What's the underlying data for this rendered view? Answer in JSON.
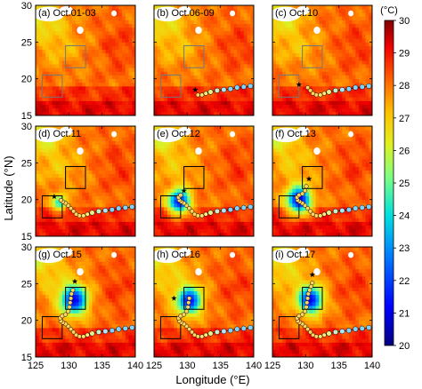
{
  "chart_data": {
    "type": "heatmap",
    "xlabel": "Longitude (°E)",
    "ylabel": "Latitude (°N)",
    "x_ticks": [
      "125",
      "130",
      "135",
      "140"
    ],
    "y_ticks": [
      "15",
      "20",
      "25",
      "30"
    ],
    "xlim": [
      125,
      140
    ],
    "ylim": [
      15,
      30
    ],
    "colorbar": {
      "unit": "(°C)",
      "min": 20,
      "max": 30,
      "ticks": [
        "30",
        "29",
        "28",
        "27",
        "26",
        "25",
        "24",
        "23",
        "22",
        "21",
        "20"
      ]
    },
    "boxes": [
      {
        "lon": [
          126,
          129
        ],
        "lat": [
          17.5,
          20.5
        ]
      },
      {
        "lon": [
          129.5,
          132.5
        ],
        "lat": [
          21.5,
          24.5
        ]
      }
    ],
    "track": [
      {
        "lon": 139.5,
        "lat": 19.0
      },
      {
        "lon": 138.5,
        "lat": 18.9
      },
      {
        "lon": 137.5,
        "lat": 18.8
      },
      {
        "lon": 136.5,
        "lat": 18.6
      },
      {
        "lon": 135.5,
        "lat": 18.5
      },
      {
        "lon": 134.5,
        "lat": 18.4
      },
      {
        "lon": 133.5,
        "lat": 18.2
      },
      {
        "lon": 132.8,
        "lat": 18.0
      },
      {
        "lon": 132.2,
        "lat": 17.8
      },
      {
        "lon": 131.6,
        "lat": 17.8
      },
      {
        "lon": 131.1,
        "lat": 18.0
      },
      {
        "lon": 130.7,
        "lat": 18.4
      },
      {
        "lon": 130.3,
        "lat": 18.8
      },
      {
        "lon": 129.9,
        "lat": 19.2
      },
      {
        "lon": 129.5,
        "lat": 19.5
      },
      {
        "lon": 129.1,
        "lat": 19.7
      },
      {
        "lon": 128.8,
        "lat": 19.9
      },
      {
        "lon": 128.7,
        "lat": 20.3
      },
      {
        "lon": 129.0,
        "lat": 20.6
      },
      {
        "lon": 129.5,
        "lat": 20.8
      },
      {
        "lon": 129.9,
        "lat": 21.2
      },
      {
        "lon": 130.1,
        "lat": 21.8
      },
      {
        "lon": 130.2,
        "lat": 22.4
      },
      {
        "lon": 130.3,
        "lat": 23.0
      },
      {
        "lon": 130.4,
        "lat": 23.6
      },
      {
        "lon": 130.6,
        "lat": 24.1
      },
      {
        "lon": 130.8,
        "lat": 24.6
      },
      {
        "lon": 131.0,
        "lat": 25.1
      }
    ],
    "panels": [
      {
        "label": "(a) Oct.01-03",
        "track_n": 0,
        "star": null,
        "cold": null
      },
      {
        "label": "(b) Oct.06-09",
        "track_n": 10,
        "star": {
          "lon": 131.2,
          "lat": 18.5
        },
        "cold": null
      },
      {
        "label": "(c) Oct.10",
        "track_n": 13,
        "star": {
          "lon": 129.0,
          "lat": 19.2
        },
        "cold": null
      },
      {
        "label": "(d) Oct.11",
        "track_n": 17,
        "star": {
          "lon": 127.8,
          "lat": 20.4
        },
        "cold": {
          "lon": 128.6,
          "lat": 19.6,
          "r": 1.2,
          "min": 24.2
        }
      },
      {
        "label": "(e) Oct.12",
        "track_n": 19,
        "star": {
          "lon": 129.5,
          "lat": 21.2
        },
        "cold": {
          "lon": 128.8,
          "lat": 19.8,
          "r": 1.8,
          "min": 21.2
        }
      },
      {
        "label": "(f) Oct.13",
        "track_n": 22,
        "star": {
          "lon": 130.5,
          "lat": 22.8
        },
        "cold": {
          "lon": 129.0,
          "lat": 20.0,
          "r": 2.0,
          "min": 20.8
        }
      },
      {
        "label": "(g) Oct.15",
        "track_n": 26,
        "star": {
          "lon": 130.9,
          "lat": 25.3
        },
        "cold": {
          "lon": 130.8,
          "lat": 22.8,
          "r": 2.2,
          "min": 21.0
        }
      },
      {
        "label": "(h) Oct.16",
        "track_n": 24,
        "star": {
          "lon": 128.0,
          "lat": 23.0
        },
        "cold": {
          "lon": 130.3,
          "lat": 22.7,
          "r": 2.0,
          "min": 21.2
        }
      },
      {
        "label": "(i) Oct.17",
        "track_n": 28,
        "star": {
          "lon": 131.0,
          "lat": 26.2
        },
        "cold": {
          "lon": 130.7,
          "lat": 22.8,
          "r": 2.0,
          "min": 21.0
        }
      }
    ]
  }
}
